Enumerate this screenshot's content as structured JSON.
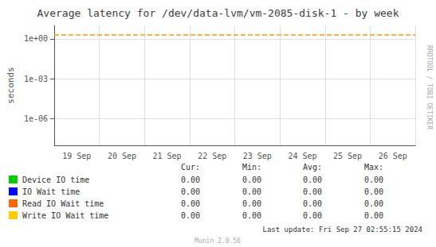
{
  "chart_data": {
    "type": "line",
    "title": "Average latency for /dev/data-lvm/vm-2085-disk-1 - by week",
    "y_label": "seconds",
    "categories": [
      "19 Sep",
      "20 Sep",
      "21 Sep",
      "22 Sep",
      "23 Sep",
      "24 Sep",
      "25 Sep",
      "26 Sep"
    ],
    "series": [
      {
        "name": "Device IO time",
        "color": "#00cc00",
        "values": [
          null,
          null,
          null,
          null,
          null,
          null,
          null,
          null
        ],
        "stats": [
          "0.00",
          "0.00",
          "0.00",
          "0.00"
        ]
      },
      {
        "name": "IO Wait time",
        "color": "#0000ff",
        "values": [
          null,
          null,
          null,
          null,
          null,
          null,
          null,
          null
        ],
        "stats": [
          "0.00",
          "0.00",
          "0.00",
          "0.00"
        ]
      },
      {
        "name": "Read IO Wait time",
        "color": "#ff6600",
        "values": [
          null,
          null,
          null,
          null,
          null,
          null,
          null,
          null
        ],
        "stats": [
          "0.00",
          "0.00",
          "0.00",
          "0.00"
        ]
      },
      {
        "name": "Write IO Wait time",
        "color": "#ffcc00",
        "values": [
          null,
          null,
          null,
          null,
          null,
          null,
          null,
          null
        ],
        "stats": [
          "0.00",
          "0.00",
          "0.00",
          "0.00"
        ]
      }
    ],
    "stats_header": [
      "Cur:",
      "Min:",
      "Avg:",
      "Max:"
    ],
    "log": "y",
    "ylim": [
      1e-08,
      10
    ],
    "yticks": [
      {
        "value": 1e-06,
        "label": "1e-06"
      },
      {
        "value": 0.001,
        "label": "1e-03"
      },
      {
        "value": 1,
        "label": "1e+00"
      }
    ],
    "hlines": [
      {
        "value": 2.0,
        "color": "#ff9900",
        "line_style": "dashed"
      }
    ],
    "grid": true,
    "annotations": [
      "RRDTOOL / TOBI OETIKER",
      "Last update: Fri Sep 27 02:55:15 2024",
      "Munin 2.0.56"
    ]
  }
}
